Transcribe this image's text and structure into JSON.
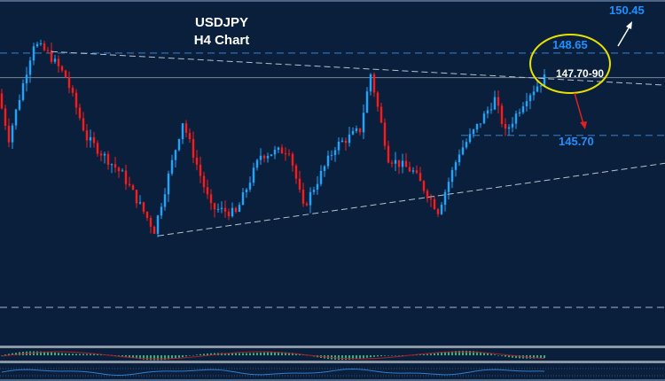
{
  "chart_data": {
    "type": "candlestick",
    "title": "USDJPY",
    "subtitle": "H4 Chart",
    "ylim": [
      138.17,
      150.55
    ],
    "bars": 154,
    "colors": {
      "up": "#19a7ff",
      "down": "#ff1a1a",
      "bg": "#0a1f3b"
    },
    "price_path": [
      [
        0,
        147.2
      ],
      [
        3,
        145.6
      ],
      [
        10,
        149.0
      ],
      [
        14,
        148.65
      ],
      [
        19,
        147.8
      ],
      [
        25,
        145.6
      ],
      [
        35,
        144.3
      ],
      [
        44,
        142.3
      ],
      [
        52,
        146.2
      ],
      [
        60,
        143.1
      ],
      [
        67,
        142.9
      ],
      [
        74,
        145.0
      ],
      [
        82,
        145.2
      ],
      [
        86,
        143.1
      ],
      [
        95,
        145.3
      ],
      [
        102,
        145.9
      ],
      [
        105,
        147.9
      ],
      [
        110,
        144.9
      ],
      [
        117,
        144.4
      ],
      [
        124,
        143.0
      ],
      [
        130,
        145.1
      ],
      [
        136,
        146.2
      ],
      [
        140,
        147.0
      ],
      [
        143,
        145.8
      ],
      [
        149,
        147.1
      ],
      [
        154,
        147.75
      ]
    ],
    "levels": [
      {
        "price": 148.65,
        "label": "148.65",
        "style": "dashed",
        "color": "#2f6fb0"
      },
      {
        "price": 147.77,
        "label": "147.70-90",
        "style": "solid",
        "color": "#6c7a8c"
      },
      {
        "price": 145.7,
        "label": "145.70",
        "style": "dashed",
        "color": "#2f6fb0"
      },
      {
        "price": 139.54,
        "label": "",
        "style": "dashed",
        "color": "#8a97a8"
      }
    ],
    "targets": [
      {
        "label": "150.45",
        "direction": "up"
      },
      {
        "label": "145.70",
        "direction": "down"
      }
    ],
    "trendlines": [
      {
        "name": "upper",
        "from": [
          14,
          148.7
        ],
        "to": [
          187,
          147.5
        ]
      },
      {
        "name": "lower",
        "from": [
          44,
          142.1
        ],
        "to": [
          187,
          144.7
        ]
      }
    ]
  }
}
